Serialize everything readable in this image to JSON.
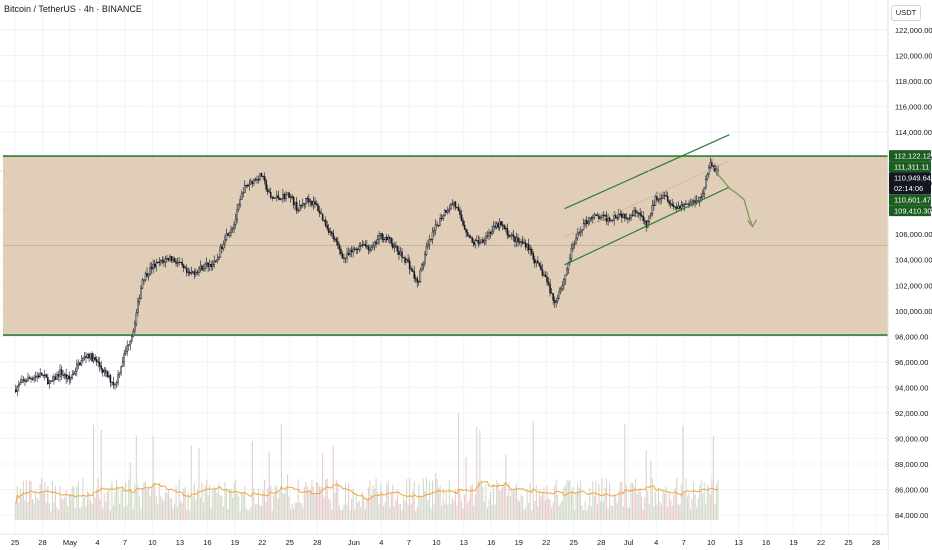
{
  "header": {
    "symbol_line": "Bitcoin / TetherUS · 4h · BINANCE",
    "currency": "USDT"
  },
  "colors": {
    "range_fill": "#dcc6ac",
    "range_border": "#2e7d32",
    "channel": "#2e7d32",
    "price_line": "#c9c9c9",
    "candle": "#131722",
    "projection": "#7a9a5e",
    "volume": "#c8d4c0",
    "volume_ma": "#f0a63c",
    "badge_green": "#1b5e20",
    "badge_dark": "#131722"
  },
  "chart_data": {
    "type": "candlestick",
    "title": "",
    "y_axis": {
      "min": 82500,
      "max": 124000,
      "ticks": [
        84000,
        86000,
        88000,
        90000,
        92000,
        94000,
        96000,
        98000,
        100000,
        102000,
        104000,
        106000,
        108000,
        110000,
        112000,
        114000,
        116000,
        118000,
        120000,
        122000
      ],
      "tick_labels": [
        "84,000.00",
        "86,000.00",
        "88,000.00",
        "90,000.00",
        "92,000.00",
        "94,000.00",
        "96,000.00",
        "98,000.00",
        "100,000.00",
        "102,000.00",
        "104,000.00",
        "106,000.00",
        "108,000.00",
        "110,000.00",
        "112,000.00",
        "114,000.00",
        "116,000.00",
        "118,000.00",
        "120,000.00",
        "122,000.00"
      ]
    },
    "x_axis": {
      "min_day": -6,
      "max_day": 88,
      "ticks": [
        {
          "day": -6,
          "label": "25"
        },
        {
          "day": -3,
          "label": "28"
        },
        {
          "day": 0,
          "label": "May"
        },
        {
          "day": 3,
          "label": "4"
        },
        {
          "day": 6,
          "label": "7"
        },
        {
          "day": 9,
          "label": "10"
        },
        {
          "day": 12,
          "label": "13"
        },
        {
          "day": 15,
          "label": "16"
        },
        {
          "day": 18,
          "label": "19"
        },
        {
          "day": 21,
          "label": "22"
        },
        {
          "day": 24,
          "label": "25"
        },
        {
          "day": 27,
          "label": "28"
        },
        {
          "day": 31,
          "label": "Jun"
        },
        {
          "day": 34,
          "label": "4"
        },
        {
          "day": 37,
          "label": "7"
        },
        {
          "day": 40,
          "label": "10"
        },
        {
          "day": 43,
          "label": "13"
        },
        {
          "day": 46,
          "label": "16"
        },
        {
          "day": 49,
          "label": "19"
        },
        {
          "day": 52,
          "label": "22"
        },
        {
          "day": 55,
          "label": "25"
        },
        {
          "day": 58,
          "label": "28"
        },
        {
          "day": 61,
          "label": "Jul"
        },
        {
          "day": 64,
          "label": "4"
        },
        {
          "day": 67,
          "label": "7"
        },
        {
          "day": 70,
          "label": "10"
        },
        {
          "day": 73,
          "label": "13"
        },
        {
          "day": 76,
          "label": "16"
        },
        {
          "day": 79,
          "label": "19"
        },
        {
          "day": 82,
          "label": "22"
        },
        {
          "day": 85,
          "label": "25"
        },
        {
          "day": 88,
          "label": "28"
        }
      ]
    },
    "price_path": [
      [
        -6,
        93800
      ],
      [
        -5,
        94500
      ],
      [
        -4,
        94800
      ],
      [
        -3,
        95000
      ],
      [
        -2,
        94300
      ],
      [
        -1,
        95200
      ],
      [
        0,
        94600
      ],
      [
        1,
        95800
      ],
      [
        2,
        96600
      ],
      [
        3,
        96000
      ],
      [
        4,
        95000
      ],
      [
        5,
        94200
      ],
      [
        6,
        96500
      ],
      [
        7,
        98500
      ],
      [
        8,
        102500
      ],
      [
        9,
        103400
      ],
      [
        10,
        103800
      ],
      [
        11,
        104200
      ],
      [
        12,
        103700
      ],
      [
        13,
        102800
      ],
      [
        14,
        103200
      ],
      [
        15,
        103600
      ],
      [
        16,
        103700
      ],
      [
        17,
        105800
      ],
      [
        18,
        106800
      ],
      [
        19,
        109500
      ],
      [
        20,
        110200
      ],
      [
        21,
        110600
      ],
      [
        22,
        108800
      ],
      [
        23,
        108900
      ],
      [
        24,
        109100
      ],
      [
        25,
        107900
      ],
      [
        26,
        108800
      ],
      [
        27,
        108200
      ],
      [
        28,
        106800
      ],
      [
        29,
        105500
      ],
      [
        30,
        104100
      ],
      [
        31,
        104700
      ],
      [
        32,
        105300
      ],
      [
        33,
        104800
      ],
      [
        34,
        105900
      ],
      [
        35,
        105500
      ],
      [
        36,
        104500
      ],
      [
        37,
        103800
      ],
      [
        38,
        102100
      ],
      [
        39,
        104800
      ],
      [
        40,
        106500
      ],
      [
        41,
        107800
      ],
      [
        42,
        108500
      ],
      [
        43,
        106800
      ],
      [
        44,
        105300
      ],
      [
        45,
        105500
      ],
      [
        46,
        106200
      ],
      [
        47,
        106800
      ],
      [
        48,
        106000
      ],
      [
        49,
        105400
      ],
      [
        50,
        105200
      ],
      [
        51,
        103700
      ],
      [
        52,
        102600
      ],
      [
        53,
        100600
      ],
      [
        54,
        102400
      ],
      [
        55,
        105100
      ],
      [
        56,
        106600
      ],
      [
        57,
        107400
      ],
      [
        58,
        107300
      ],
      [
        59,
        107200
      ],
      [
        60,
        107600
      ],
      [
        61,
        107400
      ],
      [
        62,
        107900
      ],
      [
        63,
        106600
      ],
      [
        64,
        108800
      ],
      [
        65,
        109200
      ],
      [
        66,
        108100
      ],
      [
        67,
        108300
      ],
      [
        68,
        108500
      ],
      [
        69,
        108900
      ],
      [
        70,
        111500
      ],
      [
        70.7,
        110950
      ]
    ],
    "range_box": {
      "top": 112122,
      "bottom": 98100
    },
    "channel_upper": [
      [
        54,
        108000
      ],
      [
        72,
        113800
      ]
    ],
    "channel_lower": [
      [
        54,
        103600
      ],
      [
        72,
        109700
      ]
    ],
    "projection_path": [
      [
        70.4,
        110950
      ],
      [
        71.2,
        110300
      ],
      [
        72,
        109600
      ],
      [
        72.8,
        109200
      ],
      [
        73.6,
        108700
      ],
      [
        74.2,
        107200
      ]
    ],
    "projection_arrow_to": [
      74.2,
      106600
    ],
    "price_labels": [
      {
        "value": 112122.12,
        "label": "112,122.12",
        "style": "green"
      },
      {
        "value": 111311.11,
        "label": "111,311.11",
        "style": "green"
      },
      {
        "value": 110949.64,
        "label": "110,949.64",
        "sublabel": "02:14:06",
        "style": "dark"
      },
      {
        "value": 110601.47,
        "label": "110,601.47",
        "style": "green"
      },
      {
        "value": 109410.3,
        "label": "109,410.30",
        "style": "green"
      }
    ]
  }
}
